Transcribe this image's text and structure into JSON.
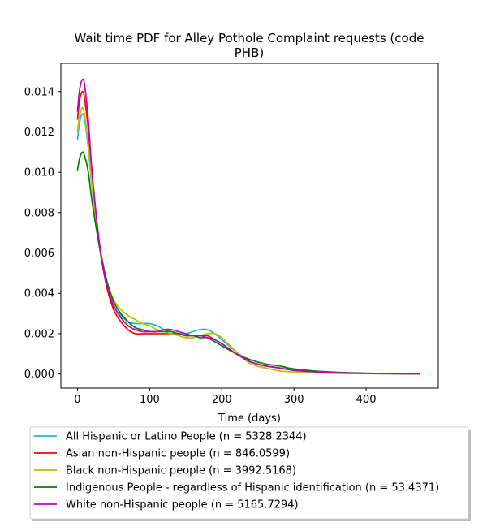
{
  "chart_data": {
    "type": "line",
    "title": "Wait time PDF for Alley Pothole Complaint  requests (code PHB)",
    "title_lines": [
      "Wait time PDF for Alley Pothole Complaint  requests (code",
      "PHB)"
    ],
    "xlabel": "Time (days)",
    "ylabel": "",
    "xlim": [
      -23,
      500
    ],
    "ylim": [
      -0.0007,
      0.0154
    ],
    "xticks": [
      0,
      100,
      200,
      300,
      400
    ],
    "xtick_labels": [
      "0",
      "100",
      "200",
      "300",
      "400"
    ],
    "yticks": [
      0.0,
      0.002,
      0.004,
      0.006,
      0.008,
      0.01,
      0.012,
      0.014
    ],
    "ytick_labels": [
      "0.000",
      "0.002",
      "0.004",
      "0.006",
      "0.008",
      "0.010",
      "0.012",
      "0.014"
    ],
    "grid": false,
    "legend_position": "below plot",
    "series": [
      {
        "name": "All Hispanic or Latino People (n = 5328.2344)",
        "color": "#17becf",
        "x": [
          0,
          3,
          7,
          10,
          15,
          20,
          30,
          40,
          50,
          60,
          70,
          80,
          90,
          100,
          110,
          120,
          130,
          140,
          150,
          160,
          170,
          180,
          190,
          200,
          220,
          240,
          260,
          280,
          300,
          350,
          400,
          450,
          475
        ],
        "y": [
          0.0116,
          0.0125,
          0.0129,
          0.0126,
          0.0112,
          0.0093,
          0.0064,
          0.0045,
          0.0034,
          0.0029,
          0.0026,
          0.0025,
          0.0025,
          0.0025,
          0.0024,
          0.0022,
          0.0021,
          0.002,
          0.002,
          0.0021,
          0.0022,
          0.0022,
          0.002,
          0.0017,
          0.0011,
          0.0006,
          0.0004,
          0.0003,
          0.00018,
          6e-05,
          2e-05,
          1e-05,
          0.0
        ]
      },
      {
        "name": "Asian non-Hispanic people (n = 846.0599)",
        "color": "#ff0000",
        "x": [
          0,
          3,
          7,
          10,
          15,
          20,
          30,
          40,
          50,
          60,
          70,
          80,
          90,
          100,
          110,
          120,
          130,
          140,
          150,
          160,
          170,
          180,
          190,
          200,
          220,
          240,
          260,
          280,
          300,
          350,
          400,
          450,
          475
        ],
        "y": [
          0.0126,
          0.0136,
          0.014,
          0.0136,
          0.0121,
          0.0098,
          0.0065,
          0.0044,
          0.0032,
          0.0026,
          0.0022,
          0.002,
          0.002,
          0.002,
          0.002,
          0.002,
          0.002,
          0.002,
          0.0019,
          0.0019,
          0.0019,
          0.0019,
          0.0017,
          0.0015,
          0.001,
          0.0006,
          0.0004,
          0.0003,
          0.00018,
          8e-05,
          3e-05,
          1e-05,
          0.0
        ]
      },
      {
        "name": "Black non-Hispanic people (n = 3992.5168)",
        "color": "#bfbf00",
        "x": [
          0,
          3,
          7,
          10,
          15,
          20,
          30,
          40,
          50,
          60,
          70,
          80,
          90,
          100,
          110,
          120,
          130,
          140,
          150,
          160,
          170,
          180,
          190,
          200,
          220,
          240,
          260,
          280,
          300,
          350,
          400,
          450,
          475
        ],
        "y": [
          0.012,
          0.0128,
          0.0132,
          0.0128,
          0.0114,
          0.0094,
          0.0066,
          0.0047,
          0.0037,
          0.0032,
          0.0029,
          0.0027,
          0.0025,
          0.0024,
          0.0022,
          0.0021,
          0.002,
          0.0019,
          0.0018,
          0.0018,
          0.0019,
          0.002,
          0.002,
          0.0018,
          0.0011,
          0.0005,
          0.0003,
          0.00015,
          0.0001,
          4e-05,
          2e-05,
          1e-05,
          0.0
        ]
      },
      {
        "name": "Indigenous People - regardless of Hispanic identification (n = 53.4371)",
        "color": "#008000",
        "x": [
          0,
          3,
          7,
          10,
          15,
          20,
          30,
          40,
          50,
          60,
          70,
          80,
          90,
          100,
          110,
          120,
          130,
          140,
          150,
          160,
          170,
          180,
          190,
          200,
          220,
          240,
          260,
          280,
          300,
          350,
          400,
          450,
          475
        ],
        "y": [
          0.0101,
          0.0107,
          0.011,
          0.0108,
          0.01,
          0.0086,
          0.0064,
          0.0047,
          0.0036,
          0.003,
          0.0026,
          0.0023,
          0.0022,
          0.0021,
          0.0021,
          0.0021,
          0.0021,
          0.002,
          0.0019,
          0.0019,
          0.0018,
          0.0018,
          0.0016,
          0.0014,
          0.001,
          0.0007,
          0.0005,
          0.0004,
          0.00025,
          0.0001,
          4e-05,
          2e-05,
          1e-05
        ]
      },
      {
        "name": "White non-Hispanic people (n = 5165.7294)",
        "color": "#bf00bf",
        "x": [
          0,
          3,
          7,
          10,
          15,
          20,
          30,
          40,
          50,
          60,
          70,
          80,
          90,
          100,
          110,
          120,
          130,
          140,
          150,
          160,
          170,
          180,
          190,
          200,
          220,
          240,
          260,
          280,
          300,
          350,
          400,
          450,
          475
        ],
        "y": [
          0.013,
          0.0141,
          0.0146,
          0.0143,
          0.0126,
          0.0101,
          0.0066,
          0.0045,
          0.0034,
          0.0028,
          0.0024,
          0.0022,
          0.0021,
          0.0021,
          0.0021,
          0.0022,
          0.0022,
          0.0021,
          0.002,
          0.0019,
          0.0019,
          0.0018,
          0.0017,
          0.0015,
          0.001,
          0.0006,
          0.0004,
          0.0003,
          0.00018,
          7e-05,
          3e-05,
          1e-05,
          0.0
        ]
      }
    ]
  }
}
